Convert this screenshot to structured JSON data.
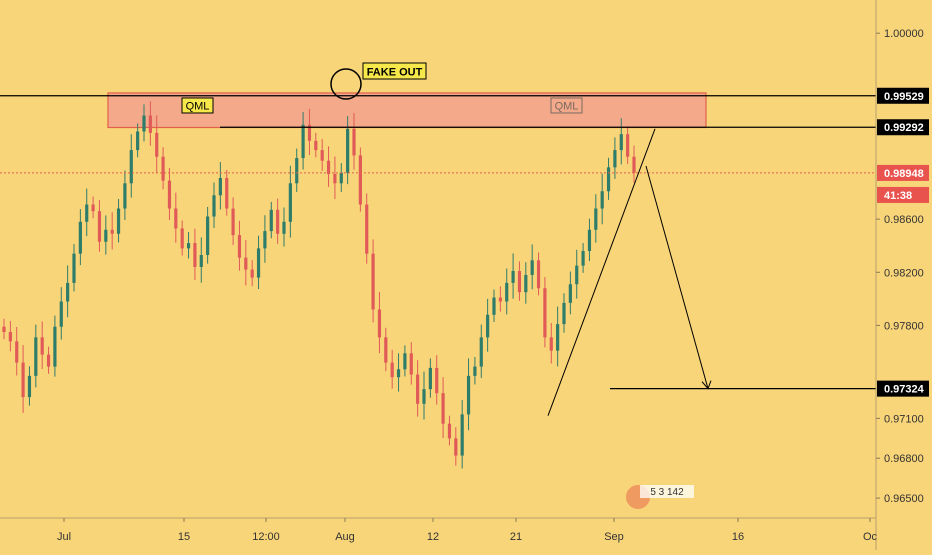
{
  "colors": {
    "background": "#f9d57a",
    "up_candle": "#2e7d6b",
    "down_candle": "#e05a57",
    "zone_fill": "#f4a98a",
    "zone_border": "#e0604a",
    "level_line": "#000000",
    "price_line": "#e0604a",
    "label_box": "#f6e84a",
    "price_badge_bg": "#000000",
    "price_badge_text": "#ffffff",
    "current_badge_bg": "#e8534e"
  },
  "chart_data": {
    "type": "candlestick",
    "y_axis": {
      "ticks": [
        "1.00000",
        "0.98600",
        "0.98200",
        "0.97800",
        "0.97100",
        "0.96800",
        "0.96500"
      ],
      "tick_values": [
        1.0,
        0.986,
        0.982,
        0.978,
        0.971,
        0.968,
        0.965
      ],
      "range": [
        0.9635,
        1.0025
      ]
    },
    "x_axis": {
      "ticks": [
        "Jul",
        "15",
        "12:00",
        "Aug",
        "12",
        "21",
        "Sep",
        "16",
        "Oc"
      ]
    },
    "levels": [
      {
        "label": "0.99529",
        "value": 0.99529,
        "style": "solid"
      },
      {
        "label": "0.99292",
        "value": 0.99292,
        "style": "solid"
      },
      {
        "label": "0.98948",
        "value": 0.98948,
        "style": "dotted",
        "current": true
      },
      {
        "label": "0.97324",
        "value": 0.97324,
        "style": "solid"
      }
    ],
    "countdown": "41:38",
    "zone": {
      "top": 0.9955,
      "bottom": 0.9929,
      "left_label": "QML",
      "right_label": "QML"
    },
    "annotations": {
      "fake_out": "FAKE OUT"
    },
    "close_series": [
      0.9775,
      0.9768,
      0.9752,
      0.9726,
      0.9742,
      0.9771,
      0.9758,
      0.9749,
      0.9779,
      0.9798,
      0.9812,
      0.9834,
      0.9858,
      0.9871,
      0.9866,
      0.9843,
      0.9852,
      0.9849,
      0.9868,
      0.9887,
      0.9912,
      0.9926,
      0.9938,
      0.9925,
      0.9907,
      0.9889,
      0.9868,
      0.9853,
      0.9838,
      0.9842,
      0.9824,
      0.9833,
      0.9862,
      0.9878,
      0.9891,
      0.9868,
      0.9848,
      0.9831,
      0.9822,
      0.9816,
      0.9838,
      0.9851,
      0.9867,
      0.9849,
      0.9858,
      0.9887,
      0.9906,
      0.9931,
      0.9919,
      0.9912,
      0.9904,
      0.9894,
      0.9887,
      0.9895,
      0.9928,
      0.9908,
      0.9871,
      0.9834,
      0.9792,
      0.9771,
      0.9752,
      0.9741,
      0.9747,
      0.9759,
      0.9743,
      0.9721,
      0.9732,
      0.9748,
      0.9729,
      0.9706,
      0.9695,
      0.9682,
      0.9713,
      0.9742,
      0.9749,
      0.9771,
      0.9788,
      0.9801,
      0.9798,
      0.9812,
      0.9821,
      0.9805,
      0.9818,
      0.9829,
      0.9808,
      0.9771,
      0.9761,
      0.9781,
      0.9797,
      0.9811,
      0.9825,
      0.9836,
      0.9852,
      0.9868,
      0.9881,
      0.9899,
      0.9912,
      0.9924,
      0.9907,
      0.9895
    ]
  },
  "watermark": {
    "text": "5 3 142"
  }
}
